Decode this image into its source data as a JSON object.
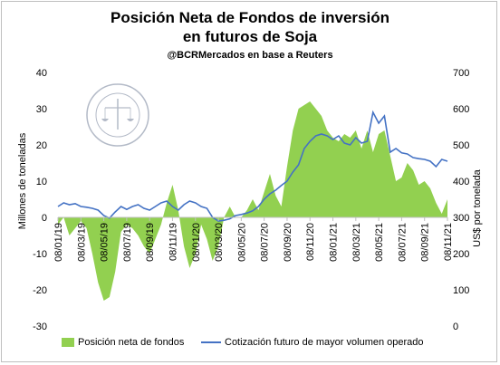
{
  "chart_data": {
    "type": "area",
    "title": "Posición Neta de Fondos de inversión",
    "title_line2": "en futuros de Soja",
    "subtitle": "@BCRMercados  en base a Reuters",
    "ylabel_left": "Millones de toneladas",
    "ylabel_right": "US$ por tonelada",
    "ylim_left": [
      -30,
      40
    ],
    "ylim_right": [
      0,
      700
    ],
    "yticks_left": [
      "40",
      "30",
      "20",
      "10",
      "0",
      "-10",
      "-20",
      "-30"
    ],
    "yticks_right": [
      "700",
      "600",
      "500",
      "400",
      "300",
      "200",
      "100",
      "0"
    ],
    "xticks": [
      "08/01/19",
      "08/03/19",
      "08/05/19",
      "08/07/19",
      "08/09/19",
      "08/11/19",
      "08/01/20",
      "08/03/20",
      "08/05/20",
      "08/07/20",
      "08/09/20",
      "08/11/20",
      "08/01/21",
      "08/03/21",
      "08/05/21",
      "08/07/21",
      "08/09/21",
      "08/11/21"
    ],
    "grid": false,
    "legend_position": "bottom",
    "series": [
      {
        "name": "Posición neta de fondos",
        "axis": "left",
        "color": "#92d050",
        "style": "area",
        "x": [
          0,
          0.5,
          1,
          1.5,
          2,
          2.5,
          3,
          3.5,
          4,
          4.5,
          5,
          5.5,
          6,
          6.5,
          7,
          7.5,
          8,
          8.5,
          9,
          9.5,
          10,
          10.5,
          11,
          11.5,
          12,
          12.5,
          13,
          13.5,
          14,
          14.5,
          15,
          15.5,
          16,
          16.5,
          17,
          17.5,
          18,
          18.5,
          19,
          19.5,
          20,
          20.5,
          21,
          21.5,
          22,
          22.5,
          23,
          23.5,
          24,
          24.5,
          25,
          25.5,
          26,
          26.5,
          27,
          27.5,
          28,
          28.5,
          29,
          29.5,
          30,
          30.5,
          31,
          31.5,
          32,
          32.5,
          33,
          33.5,
          34
        ],
        "values": [
          -2,
          0,
          -5,
          -3,
          -1,
          -3,
          -10,
          -18,
          -23,
          -22,
          -15,
          -4,
          -2,
          -3,
          -5,
          -8,
          -10,
          -6,
          -2,
          4,
          9,
          2,
          -8,
          -14,
          -10,
          -2,
          -6,
          -12,
          -8,
          0,
          3,
          0,
          0,
          2,
          5,
          2,
          7,
          12,
          6,
          3,
          14,
          24,
          30,
          31,
          32,
          30,
          28,
          24,
          22,
          21,
          23,
          22,
          24,
          19,
          24,
          18,
          23,
          24,
          17,
          10,
          11,
          15,
          13,
          9,
          10,
          8,
          4,
          1,
          5
        ]
      },
      {
        "name": "Cotización futuro de mayor volumen operado",
        "axis": "right",
        "color": "#4472c4",
        "style": "line",
        "x": [
          0,
          0.5,
          1,
          1.5,
          2,
          2.5,
          3,
          3.5,
          4,
          4.5,
          5,
          5.5,
          6,
          6.5,
          7,
          7.5,
          8,
          8.5,
          9,
          9.5,
          10,
          10.5,
          11,
          11.5,
          12,
          12.5,
          13,
          13.5,
          14,
          14.5,
          15,
          15.5,
          16,
          16.5,
          17,
          17.5,
          18,
          18.5,
          19,
          19.5,
          20,
          20.5,
          21,
          21.5,
          22,
          22.5,
          23,
          23.5,
          24,
          24.5,
          25,
          25.5,
          26,
          26.5,
          27,
          27.5,
          28,
          28.5,
          29,
          29.5,
          30,
          30.5,
          31,
          31.5,
          32,
          32.5,
          33,
          33.5,
          34
        ],
        "values": [
          330,
          340,
          335,
          338,
          330,
          328,
          325,
          320,
          305,
          298,
          315,
          330,
          322,
          330,
          335,
          325,
          320,
          330,
          340,
          345,
          330,
          320,
          335,
          345,
          340,
          330,
          325,
          300,
          290,
          292,
          296,
          305,
          308,
          312,
          318,
          330,
          350,
          365,
          375,
          388,
          400,
          425,
          445,
          490,
          510,
          525,
          530,
          525,
          515,
          525,
          505,
          500,
          520,
          505,
          510,
          590,
          560,
          580,
          480,
          490,
          478,
          475,
          465,
          462,
          460,
          455,
          440,
          460,
          455
        ]
      }
    ]
  }
}
